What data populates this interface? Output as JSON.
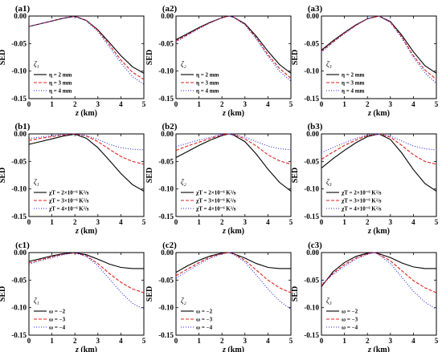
{
  "figure": {
    "colors": {
      "solid": "#000000",
      "dashed": "#e0201c",
      "dotted": "#2a2ae0"
    },
    "line_styles": [
      "solid",
      "dashed",
      "dotted"
    ]
  },
  "chart_data": [
    {
      "panel": "(a1)",
      "type": "line",
      "zeta": "ζ₁",
      "xlabel": "z (km)",
      "ylabel": "SED",
      "xlim": [
        0,
        5
      ],
      "ylim": [
        -0.15,
        0.0
      ],
      "xticks": [
        "0",
        "1",
        "2",
        "3",
        "4",
        "5"
      ],
      "yticks": [
        "0.00",
        "-0.05",
        "-0.10",
        "-0.15"
      ],
      "series": [
        {
          "name": "η = 2 mm",
          "x": [
            0,
            0.5,
            1,
            1.5,
            2,
            2.5,
            3,
            3.5,
            4,
            4.5,
            5
          ],
          "y": [
            -0.019,
            -0.014,
            -0.009,
            -0.004,
            -0.0005,
            -0.008,
            -0.025,
            -0.048,
            -0.072,
            -0.092,
            -0.104
          ]
        },
        {
          "name": "η = 3 mm",
          "x": [
            0,
            0.5,
            1,
            1.5,
            2,
            2.5,
            3,
            3.5,
            4,
            4.5,
            5
          ],
          "y": [
            -0.019,
            -0.014,
            -0.009,
            -0.004,
            -0.0005,
            -0.008,
            -0.026,
            -0.052,
            -0.08,
            -0.102,
            -0.115
          ]
        },
        {
          "name": "η = 4 mm",
          "x": [
            0,
            0.5,
            1,
            1.5,
            2,
            2.5,
            3,
            3.5,
            4,
            4.5,
            5
          ],
          "y": [
            -0.019,
            -0.014,
            -0.009,
            -0.004,
            -0.0005,
            -0.009,
            -0.028,
            -0.056,
            -0.085,
            -0.11,
            -0.124
          ]
        }
      ]
    },
    {
      "panel": "(a2)",
      "type": "line",
      "zeta": "ζ₂",
      "xlabel": "z (km)",
      "ylabel": "SED",
      "xlim": [
        0,
        5
      ],
      "ylim": [
        -0.15,
        0.0
      ],
      "xticks": [
        "0",
        "1",
        "2",
        "3",
        "4",
        "5"
      ],
      "yticks": [
        "0.00",
        "-0.05",
        "-0.10",
        "-0.15"
      ],
      "series": [
        {
          "name": "η = 2 mm",
          "x": [
            0,
            0.5,
            1,
            1.5,
            2,
            2.3,
            2.5,
            3,
            3.5,
            4,
            4.5,
            5
          ],
          "y": [
            -0.043,
            -0.032,
            -0.021,
            -0.011,
            -0.003,
            0.0,
            -0.002,
            -0.014,
            -0.037,
            -0.064,
            -0.088,
            -0.104
          ]
        },
        {
          "name": "η = 3 mm",
          "x": [
            0,
            0.5,
            1,
            1.5,
            2,
            2.3,
            2.5,
            3,
            3.5,
            4,
            4.5,
            5
          ],
          "y": [
            -0.045,
            -0.034,
            -0.022,
            -0.012,
            -0.003,
            0.0,
            -0.002,
            -0.015,
            -0.04,
            -0.07,
            -0.095,
            -0.113
          ]
        },
        {
          "name": "η = 4 mm",
          "x": [
            0,
            0.5,
            1,
            1.5,
            2,
            2.3,
            2.5,
            3,
            3.5,
            4,
            4.5,
            5
          ],
          "y": [
            -0.047,
            -0.035,
            -0.023,
            -0.012,
            -0.003,
            0.0,
            -0.002,
            -0.016,
            -0.042,
            -0.073,
            -0.1,
            -0.118
          ]
        }
      ]
    },
    {
      "panel": "(a3)",
      "type": "line",
      "zeta": "ζ₃",
      "xlabel": "z (km)",
      "ylabel": "SED",
      "xlim": [
        0,
        5
      ],
      "ylim": [
        -0.15,
        0.0
      ],
      "xticks": [
        "0",
        "1",
        "2",
        "3",
        "4",
        "5"
      ],
      "yticks": [
        "0.00",
        "-0.05",
        "-0.10",
        "-0.15"
      ],
      "series": [
        {
          "name": "η = 2 mm",
          "x": [
            0,
            0.5,
            1,
            1.5,
            2,
            2.5,
            3,
            3.5,
            4,
            4.5,
            5
          ],
          "y": [
            -0.062,
            -0.045,
            -0.03,
            -0.016,
            -0.005,
            0.0,
            -0.01,
            -0.035,
            -0.065,
            -0.09,
            -0.104
          ]
        },
        {
          "name": "η = 3 mm",
          "x": [
            0,
            0.5,
            1,
            1.5,
            2,
            2.5,
            3,
            3.5,
            4,
            4.5,
            5
          ],
          "y": [
            -0.064,
            -0.047,
            -0.031,
            -0.017,
            -0.005,
            0.0,
            -0.011,
            -0.038,
            -0.072,
            -0.098,
            -0.115
          ]
        },
        {
          "name": "η = 4 mm",
          "x": [
            0,
            0.5,
            1,
            1.5,
            2,
            2.5,
            3,
            3.5,
            4,
            4.5,
            5
          ],
          "y": [
            -0.066,
            -0.048,
            -0.032,
            -0.017,
            -0.005,
            0.0,
            -0.012,
            -0.04,
            -0.075,
            -0.103,
            -0.122
          ]
        }
      ]
    },
    {
      "panel": "(b1)",
      "type": "line",
      "zeta": "ζ₁",
      "xlabel": "z (km)",
      "ylabel": "SED",
      "xlim": [
        0,
        5
      ],
      "ylim": [
        -0.15,
        0.0
      ],
      "xticks": [
        "0",
        "1",
        "2",
        "3",
        "4",
        "5"
      ],
      "yticks": [
        "0.00",
        "-0.05",
        "-0.10",
        "-0.15"
      ],
      "series": [
        {
          "name": "χT = 2×10⁻⁶ K²/s",
          "x": [
            0,
            0.5,
            1,
            1.5,
            2,
            2.5,
            3,
            3.5,
            4,
            4.5,
            5
          ],
          "y": [
            -0.019,
            -0.014,
            -0.009,
            -0.004,
            -0.0005,
            -0.008,
            -0.025,
            -0.048,
            -0.072,
            -0.092,
            -0.104
          ]
        },
        {
          "name": "χT = 3×10⁻⁶ K²/s",
          "x": [
            0,
            0.5,
            1,
            1.5,
            2,
            2.5,
            3,
            3.5,
            4,
            4.5,
            5
          ],
          "y": [
            -0.012,
            -0.008,
            -0.005,
            -0.002,
            0.0,
            -0.004,
            -0.014,
            -0.028,
            -0.041,
            -0.05,
            -0.055
          ]
        },
        {
          "name": "χT = 4×10⁻⁶ K²/s",
          "x": [
            0,
            0.5,
            1,
            1.5,
            2,
            2.5,
            3,
            3.5,
            4,
            4.5,
            5
          ],
          "y": [
            -0.008,
            -0.006,
            -0.003,
            -0.001,
            0.0,
            -0.003,
            -0.01,
            -0.019,
            -0.025,
            -0.028,
            -0.029
          ]
        }
      ]
    },
    {
      "panel": "(b2)",
      "type": "line",
      "zeta": "ζ₂",
      "xlabel": "z (km)",
      "ylabel": "SED",
      "xlim": [
        0,
        5
      ],
      "ylim": [
        -0.15,
        0.0
      ],
      "xticks": [
        "0",
        "1",
        "2",
        "3",
        "4",
        "5"
      ],
      "yticks": [
        "0.00",
        "-0.05",
        "-0.10",
        "-0.15"
      ],
      "series": [
        {
          "name": "χT = 2×10⁻⁶ K²/s",
          "x": [
            0,
            0.5,
            1,
            1.5,
            2,
            2.3,
            2.5,
            3,
            3.5,
            4,
            4.5,
            5
          ],
          "y": [
            -0.043,
            -0.032,
            -0.021,
            -0.011,
            -0.003,
            0.0,
            -0.002,
            -0.014,
            -0.037,
            -0.064,
            -0.088,
            -0.104
          ]
        },
        {
          "name": "χT = 3×10⁻⁶ K²/s",
          "x": [
            0,
            0.5,
            1,
            1.5,
            2,
            2.3,
            2.5,
            3,
            3.5,
            4,
            4.5,
            5
          ],
          "y": [
            -0.03,
            -0.022,
            -0.015,
            -0.008,
            -0.002,
            0.0,
            -0.001,
            -0.009,
            -0.022,
            -0.038,
            -0.049,
            -0.055
          ]
        },
        {
          "name": "χT = 4×10⁻⁶ K²/s",
          "x": [
            0,
            0.5,
            1,
            1.5,
            2,
            2.3,
            2.5,
            3,
            3.5,
            4,
            4.5,
            5
          ],
          "y": [
            -0.023,
            -0.017,
            -0.011,
            -0.006,
            -0.001,
            0.0,
            -0.001,
            -0.006,
            -0.014,
            -0.022,
            -0.027,
            -0.029
          ]
        }
      ]
    },
    {
      "panel": "(b3)",
      "type": "line",
      "zeta": "ζ₃",
      "xlabel": "z (km)",
      "ylabel": "SED",
      "xlim": [
        0,
        5
      ],
      "ylim": [
        -0.15,
        0.0
      ],
      "xticks": [
        "0",
        "1",
        "2",
        "3",
        "4",
        "5"
      ],
      "yticks": [
        "0.00",
        "-0.05",
        "-0.10",
        "-0.15"
      ],
      "series": [
        {
          "name": "χT = 2×10⁻⁶ K²/s",
          "x": [
            0,
            0.5,
            1,
            1.5,
            2,
            2.5,
            3,
            3.5,
            4,
            4.5,
            5
          ],
          "y": [
            -0.062,
            -0.045,
            -0.03,
            -0.016,
            -0.005,
            0.0,
            -0.01,
            -0.035,
            -0.065,
            -0.09,
            -0.104
          ]
        },
        {
          "name": "χT = 3×10⁻⁶ K²/s",
          "x": [
            0,
            0.5,
            1,
            1.5,
            2,
            2.5,
            3,
            3.5,
            4,
            4.5,
            5
          ],
          "y": [
            -0.046,
            -0.033,
            -0.021,
            -0.011,
            -0.003,
            0.0,
            -0.006,
            -0.021,
            -0.038,
            -0.05,
            -0.055
          ]
        },
        {
          "name": "χT = 4×10⁻⁶ K²/s",
          "x": [
            0,
            0.5,
            1,
            1.5,
            2,
            2.5,
            3,
            3.5,
            4,
            4.5,
            5
          ],
          "y": [
            -0.034,
            -0.025,
            -0.016,
            -0.008,
            -0.002,
            0.0,
            -0.004,
            -0.013,
            -0.022,
            -0.027,
            -0.029
          ]
        }
      ]
    },
    {
      "panel": "(c1)",
      "type": "line",
      "zeta": "ζ₁",
      "xlabel": "z (km)",
      "ylabel": "SED",
      "xlim": [
        0,
        5
      ],
      "ylim": [
        -0.15,
        0.0
      ],
      "xticks": [
        "0",
        "1",
        "2",
        "3",
        "4",
        "5"
      ],
      "yticks": [
        "0.00",
        "-0.05",
        "-0.10",
        "-0.15"
      ],
      "series": [
        {
          "name": "ω = −2",
          "x": [
            0,
            0.5,
            1,
            1.5,
            2,
            2.5,
            3,
            3.5,
            4,
            4.5,
            5
          ],
          "y": [
            -0.016,
            -0.011,
            -0.006,
            -0.002,
            -0.0005,
            -0.004,
            -0.012,
            -0.021,
            -0.027,
            -0.029,
            -0.029
          ]
        },
        {
          "name": "ω = −3",
          "x": [
            0,
            0.5,
            1,
            1.5,
            2,
            2.5,
            3,
            3.5,
            4,
            4.5,
            5
          ],
          "y": [
            -0.019,
            -0.013,
            -0.008,
            -0.003,
            -0.0005,
            -0.006,
            -0.02,
            -0.038,
            -0.054,
            -0.066,
            -0.073
          ]
        },
        {
          "name": "ω = −4",
          "x": [
            0,
            0.5,
            1,
            1.5,
            2,
            2.5,
            3,
            3.5,
            4,
            4.5,
            5
          ],
          "y": [
            -0.021,
            -0.015,
            -0.009,
            -0.004,
            -0.0005,
            -0.007,
            -0.024,
            -0.048,
            -0.072,
            -0.092,
            -0.103
          ]
        }
      ]
    },
    {
      "panel": "(c2)",
      "type": "line",
      "zeta": "ζ₂",
      "xlabel": "z (km)",
      "ylabel": "SED",
      "xlim": [
        0,
        5
      ],
      "ylim": [
        -0.15,
        0.0
      ],
      "xticks": [
        "0",
        "1",
        "2",
        "3",
        "4",
        "5"
      ],
      "yticks": [
        "0.00",
        "-0.05",
        "-0.10",
        "-0.15"
      ],
      "series": [
        {
          "name": "ω = −2",
          "x": [
            0,
            0.5,
            1,
            1.5,
            2,
            2.3,
            2.5,
            3,
            3.5,
            4,
            4.5,
            5
          ],
          "y": [
            -0.036,
            -0.024,
            -0.014,
            -0.006,
            -0.001,
            0.0,
            -0.002,
            -0.01,
            -0.02,
            -0.027,
            -0.029,
            -0.029
          ]
        },
        {
          "name": "ω = −3",
          "x": [
            0,
            0.5,
            1,
            1.5,
            2,
            2.3,
            2.5,
            3,
            3.5,
            4,
            4.5,
            5
          ],
          "y": [
            -0.042,
            -0.03,
            -0.018,
            -0.008,
            -0.002,
            0.0,
            -0.002,
            -0.014,
            -0.032,
            -0.05,
            -0.064,
            -0.073
          ]
        },
        {
          "name": "ω = −4",
          "x": [
            0,
            0.5,
            1,
            1.5,
            2,
            2.3,
            2.5,
            3,
            3.5,
            4,
            4.5,
            5
          ],
          "y": [
            -0.046,
            -0.034,
            -0.021,
            -0.01,
            -0.002,
            0.0,
            -0.003,
            -0.017,
            -0.041,
            -0.066,
            -0.088,
            -0.103
          ]
        }
      ]
    },
    {
      "panel": "(c3)",
      "type": "line",
      "zeta": "ζ₃",
      "xlabel": "z (km)",
      "ylabel": "SED",
      "xlim": [
        0,
        5
      ],
      "ylim": [
        -0.15,
        0.0
      ],
      "xticks": [
        "0",
        "1",
        "2",
        "3",
        "4",
        "5"
      ],
      "yticks": [
        "0.00",
        "-0.05",
        "-0.10",
        "-0.15"
      ],
      "series": [
        {
          "name": "ω = −2",
          "x": [
            0,
            0.5,
            1,
            1.5,
            2,
            2.3,
            2.5,
            3,
            3.5,
            4,
            4.5,
            5
          ],
          "y": [
            -0.062,
            -0.035,
            -0.018,
            -0.007,
            -0.001,
            0.0,
            -0.002,
            -0.009,
            -0.019,
            -0.026,
            -0.029,
            -0.029
          ]
        },
        {
          "name": "ω = −3",
          "x": [
            0,
            0.5,
            1,
            1.5,
            2,
            2.3,
            2.5,
            3,
            3.5,
            4,
            4.5,
            5
          ],
          "y": [
            -0.06,
            -0.038,
            -0.022,
            -0.01,
            -0.002,
            0.0,
            -0.003,
            -0.015,
            -0.033,
            -0.051,
            -0.064,
            -0.073
          ]
        },
        {
          "name": "ω = −4",
          "x": [
            0,
            0.5,
            1,
            1.5,
            2,
            2.3,
            2.5,
            3,
            3.5,
            4,
            4.5,
            5
          ],
          "y": [
            -0.058,
            -0.04,
            -0.025,
            -0.012,
            -0.003,
            0.0,
            -0.004,
            -0.02,
            -0.045,
            -0.07,
            -0.09,
            -0.103
          ]
        }
      ]
    }
  ]
}
